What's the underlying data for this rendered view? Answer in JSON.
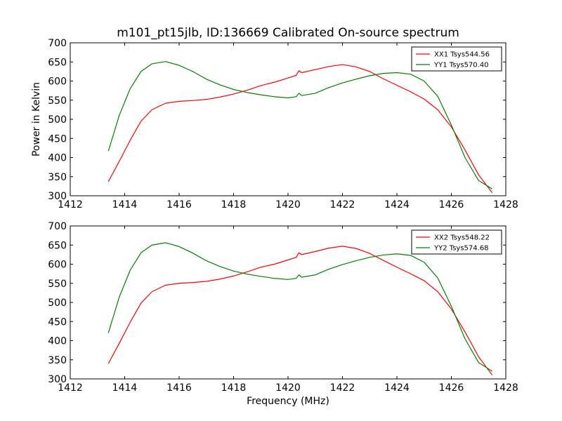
{
  "title": "m101_pt15jlb, ID:136669 Calibrated On-source spectrum",
  "xlabel": "Frequency (MHz)",
  "ylabel": "Power in Kelvin",
  "chart_data": [
    {
      "type": "line",
      "title": "m101_pt15jlb, ID:136669 Calibrated On-source spectrum",
      "xlabel": "",
      "ylabel": "Power in Kelvin",
      "xlim": [
        1412,
        1428
      ],
      "ylim": [
        300,
        700
      ],
      "xticks": [
        1412,
        1414,
        1416,
        1418,
        1420,
        1422,
        1424,
        1426,
        1428
      ],
      "yticks": [
        300,
        350,
        400,
        450,
        500,
        550,
        600,
        650,
        700
      ],
      "grid": false,
      "legend_position": "top-right",
      "series": [
        {
          "name": "XX1 Tsys544.56",
          "color": "#ff0000",
          "x": [
            1413.4,
            1413.8,
            1414.2,
            1414.6,
            1415.0,
            1415.5,
            1416.0,
            1416.5,
            1417.0,
            1417.5,
            1418.0,
            1418.5,
            1419.0,
            1419.5,
            1420.0,
            1420.3,
            1420.4,
            1420.5,
            1421.0,
            1421.5,
            1422.0,
            1422.5,
            1423.0,
            1423.5,
            1424.0,
            1424.5,
            1425.0,
            1425.5,
            1426.0,
            1426.5,
            1427.0,
            1427.5
          ],
          "y": [
            337,
            390,
            445,
            495,
            525,
            542,
            547,
            549,
            552,
            558,
            566,
            576,
            588,
            597,
            608,
            615,
            627,
            622,
            630,
            638,
            643,
            637,
            625,
            606,
            589,
            572,
            553,
            525,
            480,
            420,
            355,
            308
          ]
        },
        {
          "name": "YY1 Tsys570.40",
          "color": "#008000",
          "x": [
            1413.4,
            1413.8,
            1414.2,
            1414.6,
            1415.0,
            1415.5,
            1416.0,
            1416.5,
            1417.0,
            1417.5,
            1418.0,
            1418.5,
            1419.0,
            1419.5,
            1420.0,
            1420.3,
            1420.4,
            1420.5,
            1421.0,
            1421.5,
            1422.0,
            1422.5,
            1423.0,
            1423.5,
            1424.0,
            1424.5,
            1425.0,
            1425.5,
            1426.0,
            1426.5,
            1427.0,
            1427.5
          ],
          "y": [
            417,
            510,
            580,
            625,
            645,
            651,
            641,
            625,
            605,
            590,
            578,
            570,
            564,
            559,
            556,
            559,
            568,
            562,
            568,
            583,
            595,
            605,
            614,
            620,
            622,
            618,
            600,
            560,
            485,
            400,
            340,
            318
          ]
        }
      ]
    },
    {
      "type": "line",
      "title": "",
      "xlabel": "Frequency (MHz)",
      "ylabel": "",
      "xlim": [
        1412,
        1428
      ],
      "ylim": [
        300,
        700
      ],
      "xticks": [
        1412,
        1414,
        1416,
        1418,
        1420,
        1422,
        1424,
        1426,
        1428
      ],
      "yticks": [
        300,
        350,
        400,
        450,
        500,
        550,
        600,
        650,
        700
      ],
      "grid": false,
      "legend_position": "top-right",
      "series": [
        {
          "name": "XX2 Tsys548.22",
          "color": "#ff0000",
          "x": [
            1413.4,
            1413.8,
            1414.2,
            1414.6,
            1415.0,
            1415.5,
            1416.0,
            1416.5,
            1417.0,
            1417.5,
            1418.0,
            1418.5,
            1419.0,
            1419.5,
            1420.0,
            1420.3,
            1420.4,
            1420.5,
            1421.0,
            1421.5,
            1422.0,
            1422.5,
            1423.0,
            1423.5,
            1424.0,
            1424.5,
            1425.0,
            1425.5,
            1426.0,
            1426.5,
            1427.0,
            1427.5
          ],
          "y": [
            340,
            393,
            448,
            498,
            528,
            545,
            550,
            552,
            555,
            561,
            569,
            580,
            592,
            600,
            611,
            618,
            630,
            625,
            633,
            642,
            647,
            641,
            628,
            610,
            592,
            575,
            557,
            528,
            483,
            423,
            358,
            310
          ]
        },
        {
          "name": "YY2 Tsys574.68",
          "color": "#008000",
          "x": [
            1413.4,
            1413.8,
            1414.2,
            1414.6,
            1415.0,
            1415.5,
            1416.0,
            1416.5,
            1417.0,
            1417.5,
            1418.0,
            1418.5,
            1419.0,
            1419.5,
            1420.0,
            1420.3,
            1420.4,
            1420.5,
            1421.0,
            1421.5,
            1422.0,
            1422.5,
            1423.0,
            1423.5,
            1424.0,
            1424.5,
            1425.0,
            1425.5,
            1426.0,
            1426.5,
            1427.0,
            1427.5
          ],
          "y": [
            420,
            514,
            584,
            630,
            650,
            656,
            646,
            629,
            609,
            594,
            582,
            574,
            568,
            563,
            560,
            563,
            572,
            566,
            572,
            587,
            599,
            609,
            618,
            624,
            627,
            623,
            605,
            564,
            490,
            405,
            343,
            320
          ]
        }
      ]
    }
  ]
}
